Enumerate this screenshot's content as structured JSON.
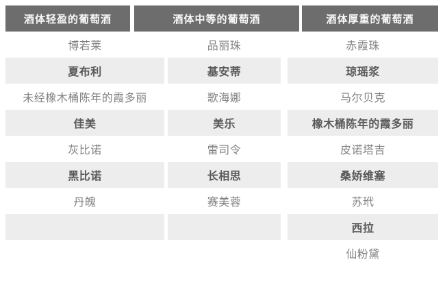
{
  "table": {
    "columns": [
      {
        "header": "酒体轻盈的葡萄酒"
      },
      {
        "header": "酒体中等的葡萄酒"
      },
      {
        "header": "酒体厚重的葡萄酒"
      }
    ],
    "rows": [
      {
        "shaded": false,
        "cells": [
          "博若莱",
          "品丽珠",
          "赤霞珠"
        ]
      },
      {
        "shaded": true,
        "cells": [
          "夏布利",
          "基安蒂",
          "琼瑶浆"
        ]
      },
      {
        "shaded": false,
        "cells": [
          "未经橡木桶陈年的霞多丽",
          "歌海娜",
          "马尔贝克"
        ]
      },
      {
        "shaded": true,
        "cells": [
          "佳美",
          "美乐",
          "橡木桶陈年的霞多丽"
        ]
      },
      {
        "shaded": false,
        "cells": [
          "灰比诺",
          "雷司令",
          "皮诺塔吉"
        ]
      },
      {
        "shaded": true,
        "cells": [
          "黑比诺",
          "长相思",
          "桑娇维塞"
        ]
      },
      {
        "shaded": false,
        "cells": [
          "丹魄",
          "赛美蓉",
          "苏玳"
        ]
      },
      {
        "shaded": true,
        "cells": [
          "",
          "",
          "西拉"
        ]
      },
      {
        "shaded": false,
        "cells": [
          "",
          "",
          "仙粉黛"
        ]
      }
    ],
    "colors": {
      "header_bg": "#6d6d6d",
      "header_text": "#f8f8f8",
      "row_shaded_bg": "#ededed",
      "row_text": "#808080",
      "row_bold_text": "#595959"
    }
  }
}
